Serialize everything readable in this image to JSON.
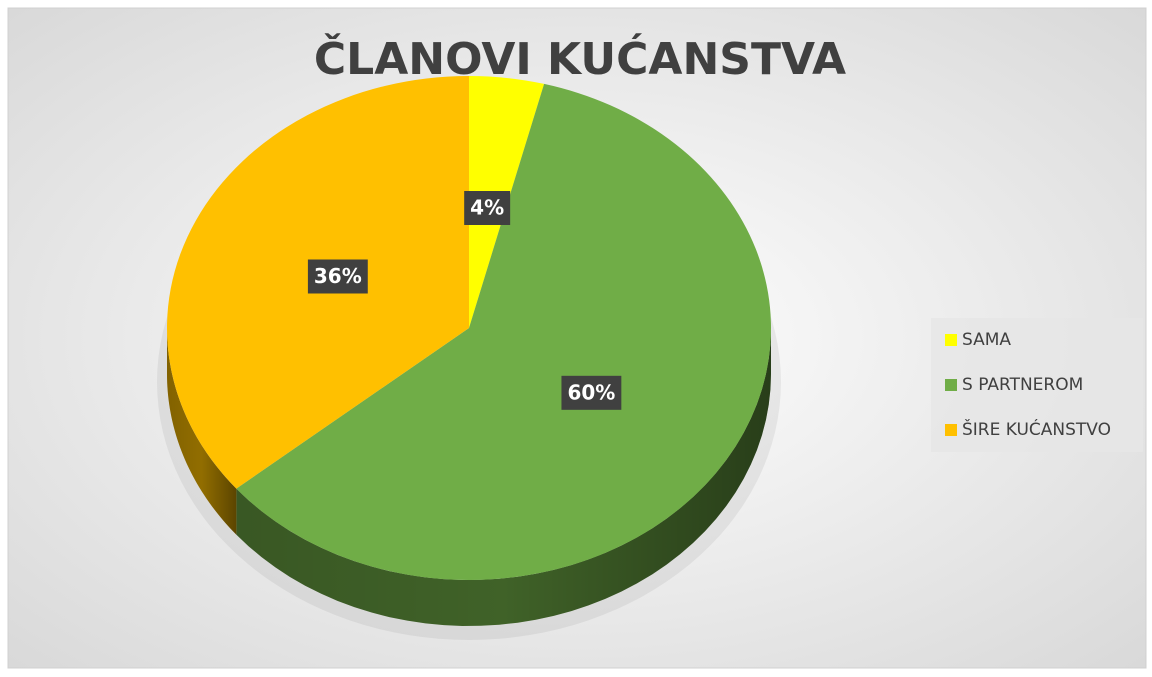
{
  "chart_data": {
    "type": "pie",
    "title": "ČLANOVI KUĆANSTVA",
    "categories": [
      "SAMA",
      "S PARTNEROM",
      "ŠIRE KUĆANSTVO"
    ],
    "values": [
      4,
      60,
      36
    ],
    "value_labels": [
      "4%",
      "60%",
      "36%"
    ],
    "colors": [
      "#ffff00",
      "#70ad47",
      "#ffc000"
    ],
    "legend": "right"
  }
}
